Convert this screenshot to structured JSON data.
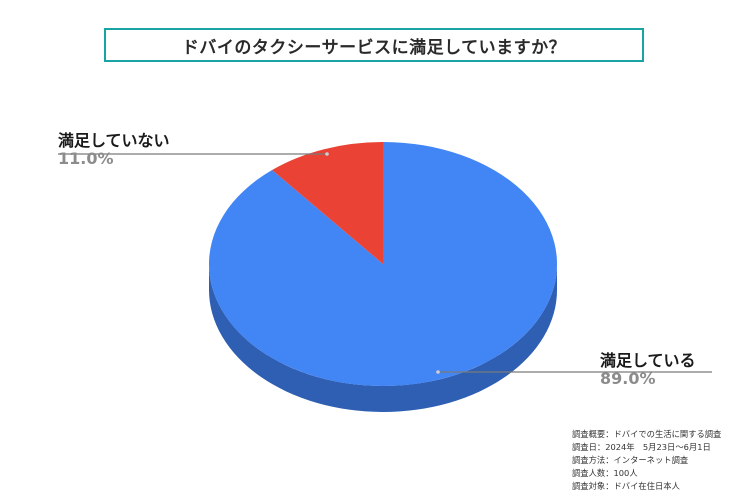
{
  "title": "ドバイのタクシーサービスに満足していますか？",
  "chart_data": {
    "type": "pie",
    "title": "ドバイのタクシーサービスに満足していますか？",
    "categories": [
      "満足している",
      "満足していない"
    ],
    "values": [
      89.0,
      11.0
    ],
    "value_labels": [
      "89.0%",
      "11.0%"
    ],
    "colors": [
      "#4285f4",
      "#ea4335"
    ],
    "side_colors": [
      "#2f5fb3",
      "#a8302a"
    ],
    "legend": "none",
    "style": "3d"
  },
  "notes": [
    "調査概要：ドバイでの生活に関する調査",
    "調査日：2024年　5月23日～6月1日",
    "調査方法：インターネット調査",
    "調査人数：100人",
    "調査対象：ドバイ在住日本人"
  ]
}
